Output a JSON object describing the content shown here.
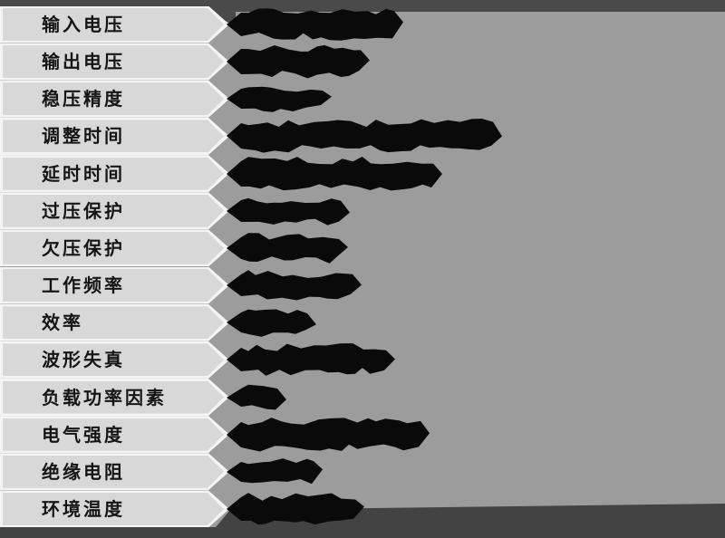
{
  "page": {
    "background_color": "#9c9c9c",
    "top_bar_color": "#4a4a4a",
    "bottom_bar_color": "#434343",
    "band_fill_color": "#d8d8d8",
    "band_edge_color": "#f4f4f4",
    "label_text_color": "#151515",
    "redaction_color": "#0a0a0a"
  },
  "table": {
    "rows": [
      {
        "label": "输入电压",
        "value": "",
        "value_redacted": true,
        "blob_width": 195,
        "blob_height": 44
      },
      {
        "label": "输出电压",
        "value": "",
        "value_redacted": true,
        "blob_width": 158,
        "blob_height": 46
      },
      {
        "label": "稳压精度",
        "value": "",
        "value_redacted": true,
        "blob_width": 116,
        "blob_height": 40
      },
      {
        "label": "调整时间",
        "value": "",
        "value_redacted": true,
        "blob_width": 304,
        "blob_height": 46
      },
      {
        "label": "延时时间",
        "value": "",
        "value_redacted": true,
        "blob_width": 238,
        "blob_height": 46
      },
      {
        "label": "过压保护",
        "value": "",
        "value_redacted": true,
        "blob_width": 136,
        "blob_height": 42
      },
      {
        "label": "欠压保护",
        "value": "",
        "value_redacted": true,
        "blob_width": 134,
        "blob_height": 42
      },
      {
        "label": "工作频率",
        "value": "",
        "value_redacted": true,
        "blob_width": 149,
        "blob_height": 42
      },
      {
        "label": "效率",
        "value": "",
        "value_redacted": true,
        "blob_width": 99,
        "blob_height": 40
      },
      {
        "label": "波形失真",
        "value": "",
        "value_redacted": true,
        "blob_width": 186,
        "blob_height": 44
      },
      {
        "label": "负载功率因素",
        "value": "",
        "value_redacted": true,
        "blob_width": 66,
        "blob_height": 38
      },
      {
        "label": "电气强度",
        "value": "",
        "value_redacted": true,
        "blob_width": 224,
        "blob_height": 46
      },
      {
        "label": "绝缘电阻",
        "value": "",
        "value_redacted": true,
        "blob_width": 106,
        "blob_height": 40
      },
      {
        "label": "环境温度",
        "value": "",
        "value_redacted": true,
        "blob_width": 152,
        "blob_height": 44
      }
    ]
  }
}
